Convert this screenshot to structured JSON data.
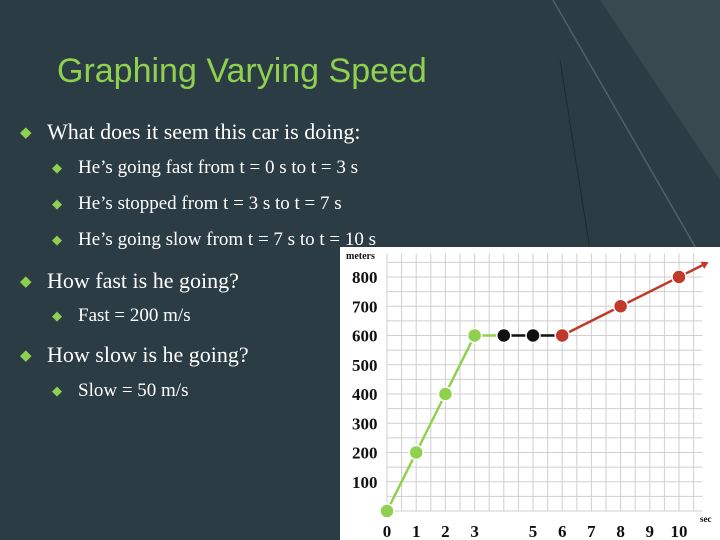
{
  "slide": {
    "title": "Graphing Varying Speed",
    "colors": {
      "background": "#2c3c44",
      "accent": "#8fd14f",
      "text": "#ffffff"
    }
  },
  "bullets": [
    {
      "level": 1,
      "text": "What does it seem this car is doing:"
    },
    {
      "level": 2,
      "text": "He’s going fast from t = 0 s to t = 3 s"
    },
    {
      "level": 2,
      "text": "He’s stopped from t = 3 s to t = 7 s"
    },
    {
      "level": 2,
      "text": "He’s going slow from t = 7 s to t = 10 s"
    },
    {
      "level": 1,
      "text": "How fast is he going?"
    },
    {
      "level": 2,
      "text": "Fast = 200 m/s"
    },
    {
      "level": 1,
      "text": "How slow is he going?"
    },
    {
      "level": 2,
      "text": "Slow = 50 m/s"
    }
  ],
  "chart_data": {
    "type": "line",
    "xlabel": "sec",
    "ylabel": "meters",
    "x_ticks": [
      0,
      1,
      2,
      3,
      5,
      6,
      7,
      8,
      9,
      10
    ],
    "y_ticks": [
      100,
      200,
      300,
      400,
      500,
      600,
      700,
      800
    ],
    "xlim": [
      0,
      10.8
    ],
    "ylim": [
      0,
      880
    ],
    "grid": true,
    "series": [
      {
        "color": "#8fd14f",
        "points": [
          [
            0,
            0
          ],
          [
            1,
            200
          ],
          [
            2,
            400
          ],
          [
            3,
            600
          ]
        ]
      },
      {
        "color": "#111111",
        "points": [
          [
            4,
            600
          ],
          [
            5,
            600
          ]
        ]
      },
      {
        "color": "#c0392b",
        "points": [
          [
            6,
            600
          ],
          [
            8,
            700
          ],
          [
            10,
            800
          ]
        ]
      }
    ],
    "arrow": {
      "color": "#c0392b",
      "from": [
        10,
        800
      ],
      "to": [
        10.8,
        840
      ]
    }
  }
}
